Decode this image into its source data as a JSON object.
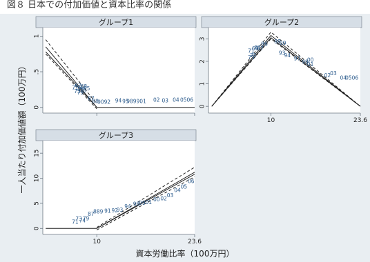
{
  "top_caption": "図８ 日本での付加価値と資本比率の関係",
  "colors": {
    "figure_background": "#e9eef2",
    "plot_background": "#ffffff",
    "title_strip": "#d6dee6",
    "axis": "#6b7680",
    "line": "#222222",
    "point_labels": "#2a5a8c"
  },
  "shared_axes": {
    "ylabel": "一人当たり付加価値額（100万円）",
    "xlabel": "資本労働比率（100万円）"
  },
  "chart_data": [
    {
      "type": "line",
      "title": "グループ1",
      "xlim": [
        2.5,
        23.6
      ],
      "ylim": [
        -0.08,
        1.12
      ],
      "xticks": [
        10,
        23.6
      ],
      "show_xticklabels": false,
      "yticks": [
        0,
        0.5,
        1
      ],
      "ytick_labels": [
        "0",
        ".5",
        "1"
      ],
      "grid": false,
      "series": [
        {
          "style": "solid",
          "x": [
            2.9,
            10,
            23.6
          ],
          "y": [
            0.85,
            0,
            0
          ]
        },
        {
          "style": "dashed",
          "x": [
            2.9,
            10
          ],
          "y": [
            0.95,
            0.05
          ]
        },
        {
          "style": "dashed",
          "x": [
            2.9,
            10
          ],
          "y": [
            0.75,
            -0.02
          ]
        },
        {
          "style": "solid",
          "x": [
            2.9,
            10
          ],
          "y": [
            0.78,
            0
          ]
        }
      ],
      "point_labels": [
        {
          "x": 7.0,
          "y": 0.27,
          "text": "71"
        },
        {
          "x": 7.4,
          "y": 0.3,
          "text": "62"
        },
        {
          "x": 7.8,
          "y": 0.27,
          "text": "66"
        },
        {
          "x": 8.2,
          "y": 0.29,
          "text": "68"
        },
        {
          "x": 8.6,
          "y": 0.26,
          "text": "85"
        },
        {
          "x": 7.3,
          "y": 0.22,
          "text": "73"
        },
        {
          "x": 7.7,
          "y": 0.2,
          "text": "79"
        },
        {
          "x": 8.1,
          "y": 0.23,
          "text": "76"
        },
        {
          "x": 9.2,
          "y": 0.12,
          "text": "87"
        },
        {
          "x": 9.8,
          "y": 0.08,
          "text": "88"
        },
        {
          "x": 11.0,
          "y": 0.07,
          "text": "9092"
        },
        {
          "x": 13.0,
          "y": 0.09,
          "text": "94"
        },
        {
          "x": 14.0,
          "y": 0.08,
          "text": "95"
        },
        {
          "x": 15.5,
          "y": 0.08,
          "text": "989901"
        },
        {
          "x": 18.3,
          "y": 0.1,
          "text": "02"
        },
        {
          "x": 19.5,
          "y": 0.09,
          "text": "03"
        },
        {
          "x": 21.0,
          "y": 0.1,
          "text": "04"
        },
        {
          "x": 22.5,
          "y": 0.1,
          "text": "0506"
        }
      ]
    },
    {
      "type": "line",
      "title": "グループ2",
      "xlim": [
        0.5,
        23.6
      ],
      "ylim": [
        -0.3,
        3.5
      ],
      "xticks": [
        10,
        23.6
      ],
      "show_xticklabels": true,
      "xtick_labels": [
        "10",
        "23.6"
      ],
      "yticks": [
        0,
        1,
        2,
        3
      ],
      "ytick_labels": [
        "0",
        "1",
        "2",
        "3"
      ],
      "grid": false,
      "series": [
        {
          "style": "solid",
          "x": [
            1.0,
            10,
            23.6
          ],
          "y": [
            0,
            3.15,
            0
          ]
        },
        {
          "style": "dashed",
          "x": [
            1.0,
            10,
            23.6
          ],
          "y": [
            0,
            3.3,
            0
          ]
        },
        {
          "style": "dashed",
          "x": [
            1.0,
            10,
            23.6
          ],
          "y": [
            0,
            3.0,
            0
          ]
        },
        {
          "style": "solid",
          "x": [
            1.0,
            10,
            23.6
          ],
          "y": [
            0,
            3.05,
            0
          ]
        }
      ],
      "point_labels": [
        {
          "x": 7.0,
          "y": 2.45,
          "text": "71"
        },
        {
          "x": 7.3,
          "y": 2.25,
          "text": "75"
        },
        {
          "x": 7.6,
          "y": 2.55,
          "text": "69"
        },
        {
          "x": 8.0,
          "y": 2.6,
          "text": "81"
        },
        {
          "x": 8.4,
          "y": 2.55,
          "text": "87"
        },
        {
          "x": 9.0,
          "y": 2.75,
          "text": "86"
        },
        {
          "x": 7.0,
          "y": 2.15,
          "text": "73"
        },
        {
          "x": 11.0,
          "y": 2.85,
          "text": "88"
        },
        {
          "x": 11.8,
          "y": 2.8,
          "text": "90"
        },
        {
          "x": 11.7,
          "y": 2.35,
          "text": "93"
        },
        {
          "x": 12.5,
          "y": 2.25,
          "text": "94"
        },
        {
          "x": 14.0,
          "y": 2.1,
          "text": "97"
        },
        {
          "x": 15.2,
          "y": 1.95,
          "text": "99"
        },
        {
          "x": 16.0,
          "y": 1.85,
          "text": "01"
        },
        {
          "x": 16.0,
          "y": 2.05,
          "text": "00"
        },
        {
          "x": 18.6,
          "y": 1.35,
          "text": "02"
        },
        {
          "x": 19.5,
          "y": 1.45,
          "text": "03"
        },
        {
          "x": 21.0,
          "y": 1.25,
          "text": "04"
        },
        {
          "x": 22.3,
          "y": 1.25,
          "text": "0506"
        }
      ]
    },
    {
      "type": "line",
      "title": "グループ3",
      "xlim": [
        2.5,
        23.6
      ],
      "ylim": [
        -1.2,
        17.5
      ],
      "xticks": [
        10,
        23.6
      ],
      "show_xticklabels": true,
      "xtick_labels": [
        "10",
        "23.6"
      ],
      "yticks": [
        0,
        5,
        10,
        15
      ],
      "ytick_labels": [
        "0",
        "5",
        "10",
        "15"
      ],
      "grid": false,
      "series": [
        {
          "style": "solid",
          "x": [
            2.9,
            10,
            23.6
          ],
          "y": [
            0,
            0,
            11.2
          ]
        },
        {
          "style": "dashed",
          "x": [
            10,
            23.6
          ],
          "y": [
            0.2,
            12.2
          ]
        },
        {
          "style": "dashed",
          "x": [
            10,
            23.6
          ],
          "y": [
            -0.3,
            10.3
          ]
        },
        {
          "style": "solid",
          "x": [
            10,
            23.6
          ],
          "y": [
            0,
            10.8
          ]
        }
      ],
      "point_labels": [
        {
          "x": 7.0,
          "y": 1.2,
          "text": "71"
        },
        {
          "x": 7.5,
          "y": 1.8,
          "text": "73"
        },
        {
          "x": 8.0,
          "y": 1.5,
          "text": "74"
        },
        {
          "x": 8.5,
          "y": 1.9,
          "text": "79"
        },
        {
          "x": 9.2,
          "y": 2.8,
          "text": "87"
        },
        {
          "x": 10.2,
          "y": 3.3,
          "text": "889"
        },
        {
          "x": 11.5,
          "y": 3.4,
          "text": "91"
        },
        {
          "x": 12.5,
          "y": 3.5,
          "text": "92"
        },
        {
          "x": 13.2,
          "y": 3.6,
          "text": "93"
        },
        {
          "x": 14.3,
          "y": 4.3,
          "text": "94"
        },
        {
          "x": 15.5,
          "y": 4.8,
          "text": "98"
        },
        {
          "x": 16.3,
          "y": 5.0,
          "text": "99"
        },
        {
          "x": 17.2,
          "y": 5.1,
          "text": "01"
        },
        {
          "x": 18.3,
          "y": 5.7,
          "text": "00"
        },
        {
          "x": 19.3,
          "y": 5.9,
          "text": "02"
        },
        {
          "x": 20.2,
          "y": 6.5,
          "text": "03"
        },
        {
          "x": 21.2,
          "y": 7.5,
          "text": "04"
        },
        {
          "x": 22.1,
          "y": 8.2,
          "text": "05"
        },
        {
          "x": 23.1,
          "y": 9.3,
          "text": "06"
        }
      ]
    }
  ]
}
